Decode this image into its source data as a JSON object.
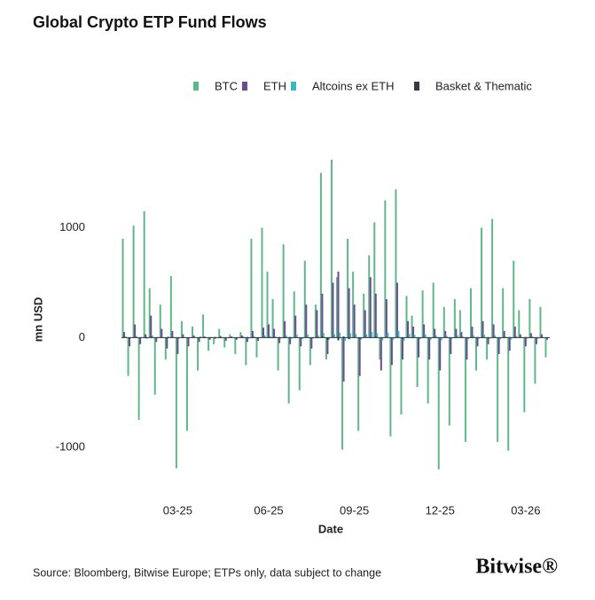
{
  "chart_data": {
    "type": "bar",
    "title": "Global Crypto ETP Fund Flows",
    "y_label": "mn USD",
    "x_label": "Date",
    "source": "Source: Bloomberg, Bitwise Europe; ETPs only, data subject to change",
    "logo": "Bitwise®",
    "categories": [
      null,
      null,
      null,
      null,
      null,
      null,
      null,
      null,
      null,
      null,
      "03-25",
      null,
      null,
      null,
      null,
      null,
      null,
      null,
      null,
      null,
      null,
      null,
      null,
      null,
      null,
      null,
      null,
      "06-25",
      null,
      null,
      null,
      null,
      null,
      null,
      null,
      null,
      null,
      null,
      null,
      null,
      null,
      null,
      null,
      "09-25",
      null,
      null,
      null,
      null,
      null,
      null,
      null,
      null,
      null,
      null,
      null,
      null,
      null,
      null,
      null,
      "12-25",
      null,
      null,
      null,
      null,
      null,
      null,
      null,
      null,
      null,
      null,
      null,
      null,
      null,
      null,
      null,
      "03-26",
      null,
      null,
      null,
      null
    ],
    "series": [
      {
        "name": "BTC",
        "color": "#5fb88a",
        "values": [
          900,
          -350,
          1020,
          -750,
          1150,
          450,
          -520,
          300,
          -200,
          560,
          -1190,
          150,
          -850,
          100,
          -300,
          210,
          -120,
          -60,
          80,
          -90,
          30,
          -150,
          50,
          -250,
          900,
          -180,
          1000,
          600,
          350,
          -300,
          850,
          -600,
          420,
          -480,
          700,
          -250,
          300,
          1500,
          -200,
          1620,
          550,
          -1020,
          900,
          600,
          -850,
          400,
          750,
          1050,
          -200,
          1250,
          -900,
          1350,
          -700,
          380,
          200,
          -450,
          430,
          -600,
          500,
          -1200,
          280,
          -800,
          350,
          250,
          -950,
          450,
          -300,
          1000,
          -200,
          1080,
          -950,
          450,
          -1030,
          700,
          250,
          -680,
          350,
          -420,
          280,
          -180
        ]
      },
      {
        "name": "ETH",
        "color": "#6a4c93",
        "values": [
          50,
          -80,
          120,
          -60,
          30,
          200,
          -40,
          80,
          -100,
          60,
          -150,
          30,
          -80,
          20,
          -40,
          10,
          -20,
          -10,
          15,
          -30,
          10,
          -20,
          20,
          -40,
          60,
          -30,
          90,
          120,
          80,
          -50,
          150,
          -60,
          200,
          -80,
          300,
          -100,
          250,
          400,
          -150,
          500,
          600,
          -400,
          450,
          300,
          -350,
          250,
          550,
          400,
          -300,
          350,
          -250,
          500,
          -200,
          150,
          100,
          -180,
          120,
          -200,
          80,
          -300,
          60,
          -150,
          80,
          50,
          -200,
          100,
          -80,
          150,
          -60,
          120,
          -150,
          60,
          -120,
          100,
          30,
          -80,
          40,
          -60,
          30,
          -20
        ]
      },
      {
        "name": "Altcoins ex ETH",
        "color": "#3bb6c4",
        "values": [
          10,
          -5,
          15,
          5,
          -10,
          20,
          5,
          -5,
          10,
          5,
          -10,
          5,
          -5,
          5,
          10,
          -5,
          5,
          0,
          5,
          -5,
          5,
          -5,
          10,
          -10,
          15,
          -5,
          20,
          15,
          10,
          -10,
          20,
          -10,
          25,
          -15,
          30,
          -10,
          20,
          40,
          -20,
          30,
          45,
          -30,
          40,
          35,
          -20,
          30,
          50,
          40,
          -25,
          45,
          -20,
          60,
          -30,
          35,
          25,
          -15,
          30,
          -20,
          20,
          -25,
          15,
          -10,
          20,
          10,
          -15,
          20,
          -10,
          25,
          -10,
          20,
          -15,
          10,
          -20,
          15,
          5,
          -10,
          10,
          -10,
          5,
          -5
        ]
      },
      {
        "name": "Basket & Thematic",
        "color": "#333a45",
        "values": [
          5,
          -10,
          5,
          0,
          -5,
          10,
          -5,
          5,
          -10,
          5,
          -5,
          0,
          -5,
          5,
          0,
          -5,
          0,
          5,
          -5,
          0,
          5,
          -5,
          0,
          5,
          -5,
          0,
          5,
          -5,
          0,
          5,
          -5,
          5,
          0,
          -5,
          5,
          0,
          -5,
          10,
          -20,
          5,
          -25,
          10,
          -15,
          5,
          -10,
          5,
          -5,
          10,
          -5,
          5,
          -5,
          5,
          -10,
          5,
          0,
          -5,
          5,
          -5,
          0,
          -5,
          5,
          -5,
          0,
          5,
          -5,
          0,
          5,
          -5,
          0,
          5,
          -5,
          0,
          5,
          -5,
          0,
          5,
          -5,
          0,
          5,
          -5
        ]
      }
    ],
    "ylim": [
      -1250,
      1700
    ],
    "yticks": [
      -1000,
      0,
      1000
    ],
    "legend": "top-right"
  }
}
